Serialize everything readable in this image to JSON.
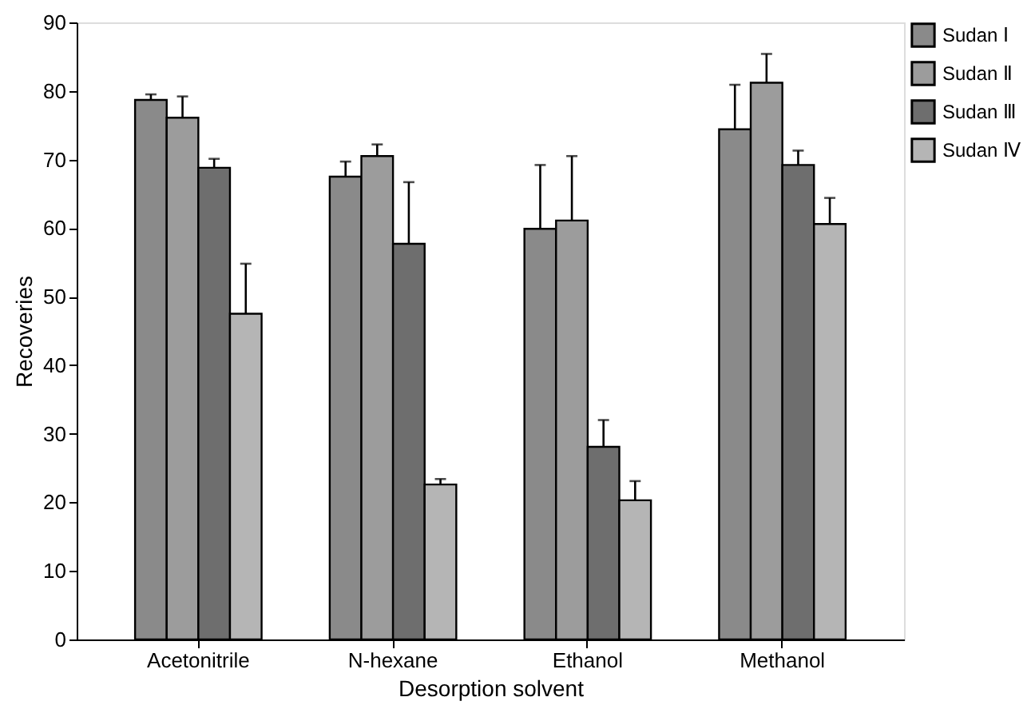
{
  "chart_data": {
    "type": "bar",
    "xlabel": "Desorption solvent",
    "ylabel": "Recoveries",
    "categories": [
      "Acetonitrile",
      "N-hexane",
      "Ethanol",
      "Methanol"
    ],
    "series": [
      {
        "name": "Sudan Ⅰ",
        "color": "#8a8a8a",
        "values": [
          78.7,
          67.5,
          59.9,
          74.4
        ],
        "errors": [
          [
            78.7,
            79.5
          ],
          [
            67.5,
            69.7
          ],
          [
            59.9,
            69.2
          ],
          [
            74.4,
            80.9
          ]
        ]
      },
      {
        "name": "Sudan Ⅱ",
        "color": "#9c9c9c",
        "values": [
          76.1,
          70.5,
          61.1,
          81.2
        ],
        "errors": [
          [
            76.1,
            79.2
          ],
          [
            70.5,
            72.2
          ],
          [
            61.1,
            70.5
          ],
          [
            81.2,
            85.4
          ]
        ]
      },
      {
        "name": "Sudan Ⅲ",
        "color": "#6e6e6e",
        "values": [
          68.8,
          57.7,
          28.1,
          69.2
        ],
        "errors": [
          [
            68.8,
            70.1
          ],
          [
            57.7,
            66.7
          ],
          [
            28.1,
            32.0
          ],
          [
            69.2,
            71.3
          ]
        ]
      },
      {
        "name": "Sudan Ⅳ",
        "color": "#b5b5b5",
        "values": [
          47.5,
          22.6,
          20.3,
          60.6
        ],
        "errors": [
          [
            47.5,
            54.8
          ],
          [
            22.6,
            23.4
          ],
          [
            20.3,
            23.1
          ],
          [
            60.6,
            64.4
          ]
        ]
      }
    ],
    "ylim": [
      0,
      90
    ],
    "yticks": [
      0,
      10,
      20,
      30,
      40,
      50,
      60,
      70,
      80,
      90
    ],
    "grid": false,
    "legend": "top right"
  }
}
